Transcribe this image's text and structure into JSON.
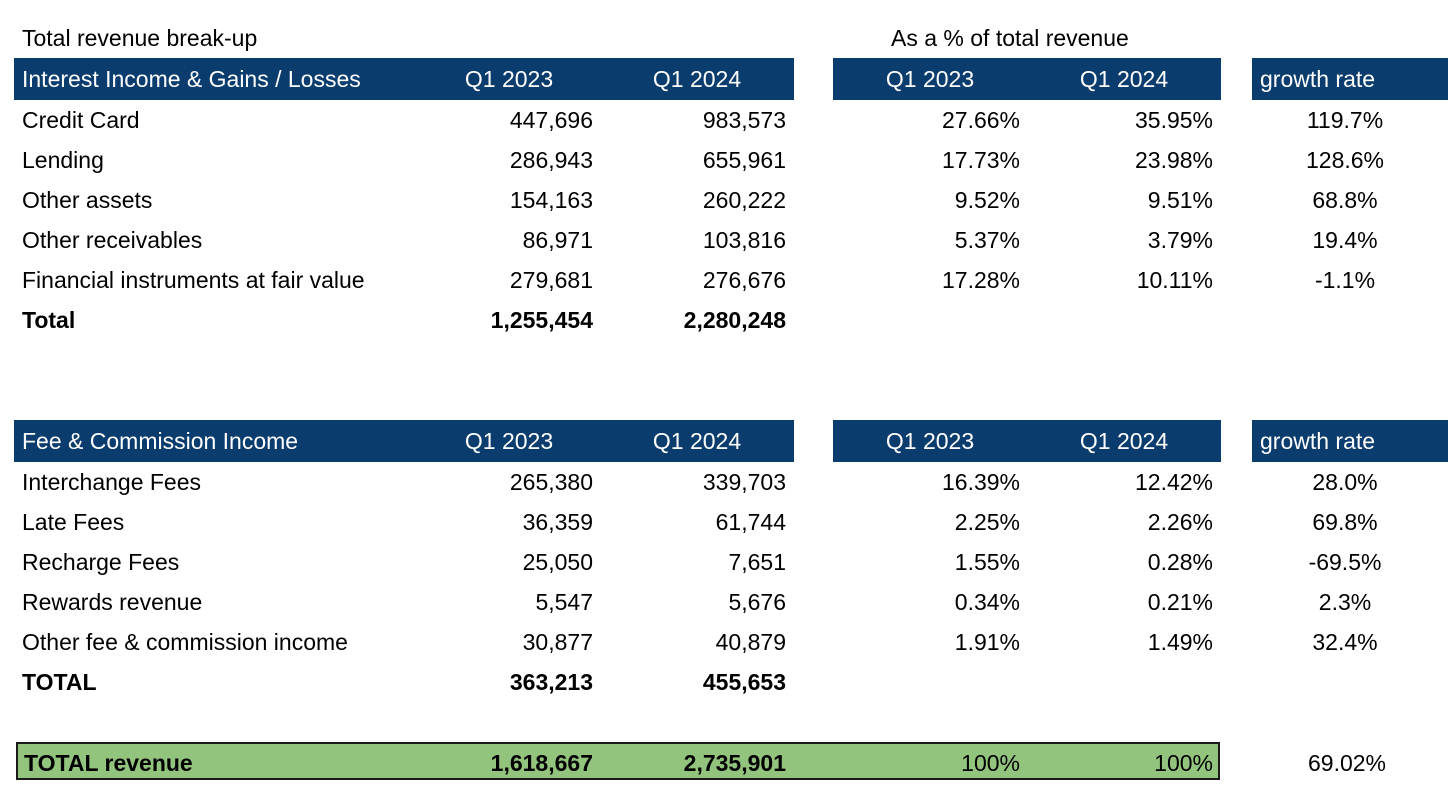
{
  "titles": {
    "left": "Total revenue break-up",
    "right": "As a % of total revenue"
  },
  "colors": {
    "header_bg": "#0b3c6e",
    "total_bg": "#93c47d"
  },
  "section1": {
    "header": {
      "label": "Interest Income & Gains / Losses",
      "q1_2023": "Q1 2023",
      "q1_2024": "Q1 2024",
      "pct_q1_2023": "Q1 2023",
      "pct_q1_2024": "Q1 2024",
      "growth": "growth rate"
    },
    "rows": [
      {
        "label": "Credit Card",
        "q1_2023": "447,696",
        "q1_2024": "983,573",
        "pct_2023": "27.66%",
        "pct_2024": "35.95%",
        "growth": "119.7%"
      },
      {
        "label": "Lending",
        "q1_2023": "286,943",
        "q1_2024": "655,961",
        "pct_2023": "17.73%",
        "pct_2024": "23.98%",
        "growth": "128.6%"
      },
      {
        "label": "Other assets",
        "q1_2023": "154,163",
        "q1_2024": "260,222",
        "pct_2023": "9.52%",
        "pct_2024": "9.51%",
        "growth": "68.8%"
      },
      {
        "label": "Other receivables",
        "q1_2023": "86,971",
        "q1_2024": "103,816",
        "pct_2023": "5.37%",
        "pct_2024": "3.79%",
        "growth": "19.4%"
      },
      {
        "label": "Financial instruments at fair value",
        "q1_2023": "279,681",
        "q1_2024": "276,676",
        "pct_2023": "17.28%",
        "pct_2024": "10.11%",
        "growth": "-1.1%"
      }
    ],
    "total": {
      "label": "Total",
      "q1_2023": "1,255,454",
      "q1_2024": "2,280,248"
    }
  },
  "section2": {
    "header": {
      "label": "Fee & Commission Income",
      "q1_2023": "Q1 2023",
      "q1_2024": "Q1 2024",
      "pct_q1_2023": "Q1 2023",
      "pct_q1_2024": "Q1 2024",
      "growth": "growth rate"
    },
    "rows": [
      {
        "label": "Interchange Fees",
        "q1_2023": "265,380",
        "q1_2024": "339,703",
        "pct_2023": "16.39%",
        "pct_2024": "12.42%",
        "growth": "28.0%"
      },
      {
        "label": "Late Fees",
        "q1_2023": "36,359",
        "q1_2024": "61,744",
        "pct_2023": "2.25%",
        "pct_2024": "2.26%",
        "growth": "69.8%"
      },
      {
        "label": "Recharge Fees",
        "q1_2023": "25,050",
        "q1_2024": "7,651",
        "pct_2023": "1.55%",
        "pct_2024": "0.28%",
        "growth": "-69.5%"
      },
      {
        "label": "Rewards revenue",
        "q1_2023": "5,547",
        "q1_2024": "5,676",
        "pct_2023": "0.34%",
        "pct_2024": "0.21%",
        "growth": "2.3%"
      },
      {
        "label": "Other fee & commission income",
        "q1_2023": "30,877",
        "q1_2024": "40,879",
        "pct_2023": "1.91%",
        "pct_2024": "1.49%",
        "growth": "32.4%"
      }
    ],
    "total": {
      "label": "TOTAL",
      "q1_2023": "363,213",
      "q1_2024": "455,653"
    }
  },
  "grand_total": {
    "label": "TOTAL revenue",
    "q1_2023": "1,618,667",
    "q1_2024": "2,735,901",
    "pct_2023": "100%",
    "pct_2024": "100%",
    "growth": "69.02%"
  }
}
